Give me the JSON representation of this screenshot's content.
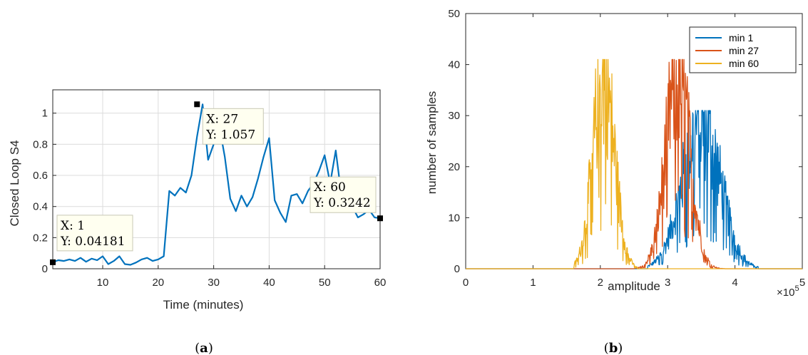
{
  "chart_data": [
    {
      "type": "line",
      "panel": "(a)",
      "xlabel": "Time (minutes)",
      "ylabel": "Closed Loop S4",
      "xlim": [
        1,
        60
      ],
      "ylim": [
        0,
        1.15
      ],
      "xticks": [
        10,
        20,
        30,
        40,
        50,
        60
      ],
      "yticks": [
        0,
        0.2,
        0.4,
        0.6,
        0.8,
        1
      ],
      "grid": true,
      "color": "#0072bd",
      "series": [
        {
          "x": [
            1,
            2,
            3,
            4,
            5,
            6,
            7,
            8,
            9,
            10,
            11,
            12,
            13,
            14,
            15,
            16,
            17,
            18,
            19,
            20,
            21,
            22,
            23,
            24,
            25,
            26,
            27,
            28,
            29,
            30,
            31,
            32,
            33,
            34,
            35,
            36,
            37,
            38,
            39,
            40,
            41,
            42,
            43,
            44,
            45,
            46,
            47,
            48,
            49,
            50,
            51,
            52,
            53,
            54,
            55,
            56,
            57,
            58,
            59,
            60
          ],
          "y": [
            0.042,
            0.055,
            0.05,
            0.06,
            0.05,
            0.07,
            0.045,
            0.065,
            0.055,
            0.08,
            0.03,
            0.05,
            0.08,
            0.03,
            0.025,
            0.04,
            0.06,
            0.07,
            0.05,
            0.06,
            0.08,
            0.5,
            0.47,
            0.52,
            0.49,
            0.6,
            0.85,
            1.057,
            0.7,
            0.8,
            0.92,
            0.72,
            0.45,
            0.37,
            0.47,
            0.4,
            0.46,
            0.58,
            0.72,
            0.84,
            0.44,
            0.36,
            0.3,
            0.47,
            0.48,
            0.42,
            0.5,
            0.55,
            0.63,
            0.73,
            0.55,
            0.76,
            0.48,
            0.44,
            0.4,
            0.33,
            0.35,
            0.38,
            0.33,
            0.3242
          ]
        }
      ],
      "datatips": [
        {
          "x": 1,
          "y": 0.04181,
          "line1": "X: 1",
          "line2": "Y: 0.04181"
        },
        {
          "x": 27,
          "y": 1.057,
          "line1": "X: 27",
          "line2": "Y: 1.057"
        },
        {
          "x": 60,
          "y": 0.3242,
          "line1": "X: 60",
          "line2": "Y: 0.3242"
        }
      ],
      "caption_bold": "a"
    },
    {
      "type": "line",
      "panel": "(b)",
      "xlabel": "amplitude",
      "ylabel": "number of samples",
      "x_multiplier": "×10",
      "x_multiplier_exp": "5",
      "xlim": [
        0,
        5
      ],
      "ylim": [
        0,
        50
      ],
      "xticks": [
        0,
        1,
        2,
        3,
        4,
        5
      ],
      "yticks": [
        0,
        10,
        20,
        30,
        40,
        50
      ],
      "grid": false,
      "legend_position": "top-right",
      "series": [
        {
          "name": "min 1",
          "color": "#0072bd",
          "mean": 3.5,
          "spread": 0.28,
          "peak": 31,
          "lo": 2.7,
          "hi": 4.35
        },
        {
          "name": "min 27",
          "color": "#d95319",
          "mean": 3.15,
          "spread": 0.18,
          "peak": 41,
          "lo": 2.5,
          "hi": 3.85
        },
        {
          "name": "min 60",
          "color": "#edb120",
          "mean": 2.05,
          "spread": 0.16,
          "peak": 41,
          "lo": 1.6,
          "hi": 2.55
        }
      ],
      "caption_bold": "b"
    }
  ]
}
